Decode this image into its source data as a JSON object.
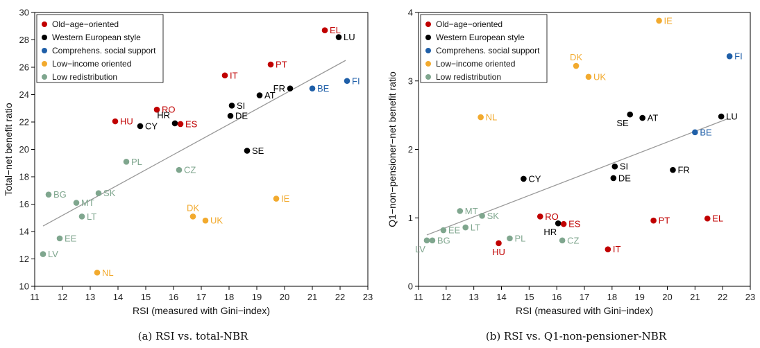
{
  "colors": {
    "old": "#c00000",
    "west": "#000000",
    "comp": "#1f5fa8",
    "low": "#f2aa2e",
    "lowred": "#7fa68e",
    "fit": "#999999"
  },
  "legend": [
    {
      "key": "old",
      "label": "Old−age−oriented"
    },
    {
      "key": "west",
      "label": "Western European style"
    },
    {
      "key": "comp",
      "label": "Comprehens. social support"
    },
    {
      "key": "low",
      "label": "Low−income oriented"
    },
    {
      "key": "lowred",
      "label": "Low redistribution"
    }
  ],
  "chart_data": [
    {
      "type": "scatter",
      "caption": "(a) RSI vs. total-NBR",
      "xlabel": "RSI (measured with Gini−index)",
      "ylabel": "Total−net benefit ratio",
      "xlim": [
        11,
        23
      ],
      "ylim": [
        10,
        30
      ],
      "xticks": [
        11,
        12,
        13,
        14,
        15,
        16,
        17,
        18,
        19,
        20,
        21,
        22,
        23
      ],
      "yticks": [
        10,
        12,
        14,
        16,
        18,
        20,
        22,
        24,
        26,
        28,
        30
      ],
      "legend_position": "top-left",
      "fit_line": {
        "x": [
          11.3,
          22.2
        ],
        "y": [
          14.4,
          26.5
        ]
      },
      "points": [
        {
          "label": "EL",
          "group": "old",
          "x": 21.45,
          "y": 28.7
        },
        {
          "label": "LU",
          "group": "west",
          "x": 21.95,
          "y": 28.2
        },
        {
          "label": "PT",
          "group": "old",
          "x": 19.5,
          "y": 26.2
        },
        {
          "label": "IT",
          "group": "old",
          "x": 17.85,
          "y": 25.4
        },
        {
          "label": "FR",
          "group": "west",
          "x": 20.2,
          "y": 24.45
        },
        {
          "label": "BE",
          "group": "comp",
          "x": 21.0,
          "y": 24.45
        },
        {
          "label": "FI",
          "group": "comp",
          "x": 22.25,
          "y": 25.0
        },
        {
          "label": "AT",
          "group": "west",
          "x": 19.1,
          "y": 23.95
        },
        {
          "label": "SI",
          "group": "west",
          "x": 18.1,
          "y": 23.2
        },
        {
          "label": "RO",
          "group": "old",
          "x": 15.4,
          "y": 22.9
        },
        {
          "label": "DE",
          "group": "west",
          "x": 18.05,
          "y": 22.45
        },
        {
          "label": "HR",
          "group": "west",
          "x": 16.05,
          "y": 21.9
        },
        {
          "label": "ES",
          "group": "old",
          "x": 16.25,
          "y": 21.85
        },
        {
          "label": "HU",
          "group": "old",
          "x": 13.9,
          "y": 22.05
        },
        {
          "label": "CY",
          "group": "west",
          "x": 14.8,
          "y": 21.7
        },
        {
          "label": "SE",
          "group": "west",
          "x": 18.65,
          "y": 19.9
        },
        {
          "label": "PL",
          "group": "lowred",
          "x": 14.3,
          "y": 19.1
        },
        {
          "label": "CZ",
          "group": "lowred",
          "x": 16.2,
          "y": 18.5
        },
        {
          "label": "SK",
          "group": "lowred",
          "x": 13.3,
          "y": 16.8
        },
        {
          "label": "BG",
          "group": "lowred",
          "x": 11.5,
          "y": 16.7
        },
        {
          "label": "MT",
          "group": "lowred",
          "x": 12.5,
          "y": 16.1
        },
        {
          "label": "LT",
          "group": "lowred",
          "x": 12.7,
          "y": 15.1
        },
        {
          "label": "IE",
          "group": "low",
          "x": 19.7,
          "y": 16.4
        },
        {
          "label": "DK",
          "group": "low",
          "x": 16.7,
          "y": 15.1
        },
        {
          "label": "UK",
          "group": "low",
          "x": 17.15,
          "y": 14.8
        },
        {
          "label": "EE",
          "group": "lowred",
          "x": 11.9,
          "y": 13.5
        },
        {
          "label": "LV",
          "group": "lowred",
          "x": 11.3,
          "y": 12.35
        },
        {
          "label": "NL",
          "group": "low",
          "x": 13.25,
          "y": 11.0
        }
      ]
    },
    {
      "type": "scatter",
      "caption": "(b) RSI vs. Q1-non-pensioner-NBR",
      "xlabel": "RSI (measured with Gini−index)",
      "ylabel": "Q1−non−pensioner−net benefit ratio",
      "xlim": [
        11,
        23
      ],
      "ylim": [
        0,
        4
      ],
      "xticks": [
        11,
        12,
        13,
        14,
        15,
        16,
        17,
        18,
        19,
        20,
        21,
        22,
        23
      ],
      "yticks": [
        0,
        1,
        2,
        3,
        4
      ],
      "legend_position": "top-left",
      "fit_line": {
        "x": [
          11.3,
          22.2
        ],
        "y": [
          0.75,
          2.45
        ]
      },
      "points": [
        {
          "label": "IE",
          "group": "low",
          "x": 19.7,
          "y": 3.88
        },
        {
          "label": "FI",
          "group": "comp",
          "x": 22.25,
          "y": 3.36
        },
        {
          "label": "DK",
          "group": "low",
          "x": 16.7,
          "y": 3.22
        },
        {
          "label": "UK",
          "group": "low",
          "x": 17.15,
          "y": 3.06
        },
        {
          "label": "SE",
          "group": "west",
          "x": 18.65,
          "y": 2.51
        },
        {
          "label": "AT",
          "group": "west",
          "x": 19.1,
          "y": 2.46
        },
        {
          "label": "LU",
          "group": "west",
          "x": 21.95,
          "y": 2.48
        },
        {
          "label": "NL",
          "group": "low",
          "x": 13.25,
          "y": 2.47
        },
        {
          "label": "BE",
          "group": "comp",
          "x": 21.0,
          "y": 2.25
        },
        {
          "label": "SI",
          "group": "west",
          "x": 18.1,
          "y": 1.75
        },
        {
          "label": "FR",
          "group": "west",
          "x": 20.2,
          "y": 1.7
        },
        {
          "label": "DE",
          "group": "west",
          "x": 18.05,
          "y": 1.58
        },
        {
          "label": "CY",
          "group": "west",
          "x": 14.8,
          "y": 1.57
        },
        {
          "label": "MT",
          "group": "lowred",
          "x": 12.5,
          "y": 1.1
        },
        {
          "label": "SK",
          "group": "lowred",
          "x": 13.3,
          "y": 1.03
        },
        {
          "label": "RO",
          "group": "old",
          "x": 15.4,
          "y": 1.02
        },
        {
          "label": "EL",
          "group": "old",
          "x": 21.45,
          "y": 0.99
        },
        {
          "label": "PT",
          "group": "old",
          "x": 19.5,
          "y": 0.96
        },
        {
          "label": "HR",
          "group": "west",
          "x": 16.05,
          "y": 0.92
        },
        {
          "label": "ES",
          "group": "old",
          "x": 16.25,
          "y": 0.91
        },
        {
          "label": "LT",
          "group": "lowred",
          "x": 12.7,
          "y": 0.86
        },
        {
          "label": "EE",
          "group": "lowred",
          "x": 11.9,
          "y": 0.82
        },
        {
          "label": "PL",
          "group": "lowred",
          "x": 14.3,
          "y": 0.7
        },
        {
          "label": "LV",
          "group": "lowred",
          "x": 11.3,
          "y": 0.67
        },
        {
          "label": "BG",
          "group": "lowred",
          "x": 11.5,
          "y": 0.67
        },
        {
          "label": "CZ",
          "group": "lowred",
          "x": 16.2,
          "y": 0.67
        },
        {
          "label": "HU",
          "group": "old",
          "x": 13.9,
          "y": 0.63
        },
        {
          "label": "IT",
          "group": "old",
          "x": 17.85,
          "y": 0.54
        }
      ]
    }
  ]
}
